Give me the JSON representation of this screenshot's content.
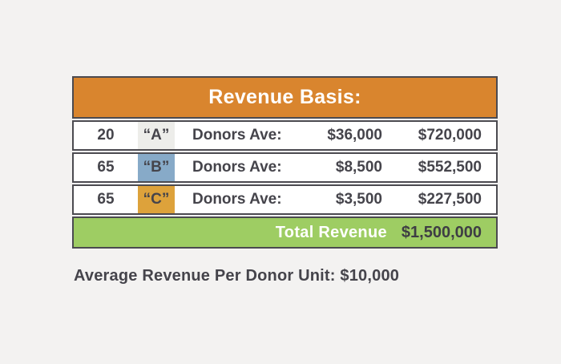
{
  "table": {
    "title": "Revenue Basis:",
    "rows": [
      {
        "count": "20",
        "letter": "“A”",
        "label": "Donors Ave:",
        "ave": "$36,000",
        "revenue": "$720,000"
      },
      {
        "count": "65",
        "letter": "“B”",
        "label": "Donors Ave:",
        "ave": "$8,500",
        "revenue": "$552,500"
      },
      {
        "count": "65",
        "letter": "“C”",
        "label": "Donors Ave:",
        "ave": "$3,500",
        "revenue": "$227,500"
      }
    ],
    "total_label": "Total Revenue",
    "total_value": "$1,500,000"
  },
  "note": "Average Revenue Per Donor Unit: $10,000",
  "colors": {
    "page_bg": "#f3f2f1",
    "table_border": "#4b4a50",
    "header_bg": "#d9852e",
    "header_text": "#ffffff",
    "row_bg": "#ffffff",
    "text_dark": "#45444b",
    "tier_a_bg": "#ededea",
    "tier_b_bg": "#87aac8",
    "tier_c_bg": "#dda23b",
    "total_bg": "#9ecd63",
    "total_label_text": "#ffffff"
  },
  "chart_data": {
    "type": "table",
    "title": "Revenue Basis:",
    "rows": [
      {
        "donor_units": 20,
        "tier": "A",
        "average_gift": 36000,
        "revenue": 720000
      },
      {
        "donor_units": 65,
        "tier": "B",
        "average_gift": 8500,
        "revenue": 552500
      },
      {
        "donor_units": 65,
        "tier": "C",
        "average_gift": 3500,
        "revenue": 227500
      }
    ],
    "total": {
      "label": "Total Revenue",
      "value": 1500000
    },
    "annotation": "Average Revenue Per Donor Unit: $10,000",
    "legend_position": "none",
    "grid": false
  }
}
